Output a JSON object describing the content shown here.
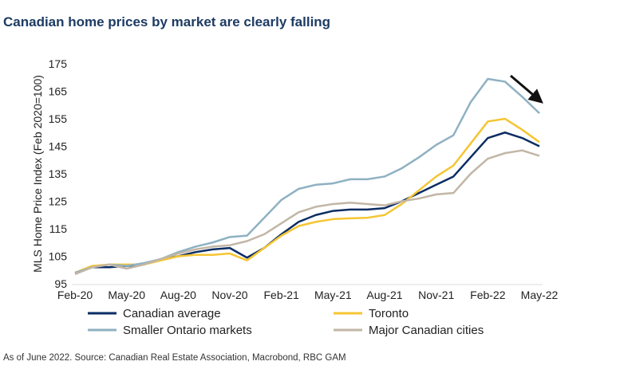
{
  "title": "Canadian home prices by market are clearly falling",
  "source": "As of June 2022. Source: Canadian Real Estate Association, Macrobond, RBC GAM",
  "chart_data": {
    "type": "line",
    "title": "Canadian home prices by market are clearly falling",
    "ylabel": "MLS Home Price Index (Feb 2020=100)",
    "xlabel": "",
    "ylim": [
      95,
      175
    ],
    "yticks": [
      95,
      105,
      115,
      125,
      135,
      145,
      155,
      165,
      175
    ],
    "x": [
      "Feb-20",
      "Mar-20",
      "Apr-20",
      "May-20",
      "Jun-20",
      "Jul-20",
      "Aug-20",
      "Sep-20",
      "Oct-20",
      "Nov-20",
      "Dec-20",
      "Jan-21",
      "Feb-21",
      "Mar-21",
      "Apr-21",
      "May-21",
      "Jun-21",
      "Jul-21",
      "Aug-21",
      "Sep-21",
      "Oct-21",
      "Nov-21",
      "Dec-21",
      "Jan-22",
      "Feb-22",
      "Mar-22",
      "Apr-22",
      "May-22"
    ],
    "xticks": [
      "Feb-20",
      "May-20",
      "Aug-20",
      "Nov-20",
      "Feb-21",
      "May-21",
      "Aug-21",
      "Nov-21",
      "Feb-22",
      "May-22"
    ],
    "legend_position": "bottom",
    "annotation": "downward arrow near latest values",
    "series": [
      {
        "name": "Canadian average",
        "color": "#0b2d63",
        "values": [
          99,
          101,
          101,
          101.5,
          102,
          104,
          105,
          106.5,
          107.5,
          108,
          104.5,
          108,
          113,
          117.5,
          120,
          121.5,
          122,
          122,
          122.5,
          125,
          128,
          131,
          134,
          141,
          148,
          150,
          148,
          145
        ]
      },
      {
        "name": "Toronto",
        "color": "#f5c533",
        "values": [
          99,
          101.5,
          102,
          102,
          102,
          103.5,
          105,
          105.5,
          105.5,
          106,
          103.5,
          108,
          112.5,
          116,
          117.5,
          118.5,
          118.8,
          119,
          120,
          124,
          129,
          134,
          138,
          146,
          154,
          155,
          151,
          146.5
        ]
      },
      {
        "name": "Smaller Ontario markets",
        "color": "#8fb1c2",
        "values": [
          99,
          101,
          102,
          101.5,
          102.5,
          104,
          106.5,
          108.5,
          110,
          112,
          112.5,
          119,
          125.5,
          129.5,
          131,
          131.5,
          133,
          133,
          134,
          137,
          141,
          145.5,
          149,
          161,
          169.5,
          168.5,
          163,
          157
        ]
      },
      {
        "name": "Major Canadian cities",
        "color": "#c2b6a6",
        "values": [
          98.5,
          101,
          102,
          100.5,
          102,
          104,
          106,
          107.5,
          108.5,
          109,
          110.5,
          113,
          117,
          121,
          123,
          124,
          124.5,
          124,
          123.5,
          125,
          126,
          127.5,
          128,
          135,
          140.5,
          142.5,
          143.5,
          141.5
        ]
      }
    ]
  }
}
